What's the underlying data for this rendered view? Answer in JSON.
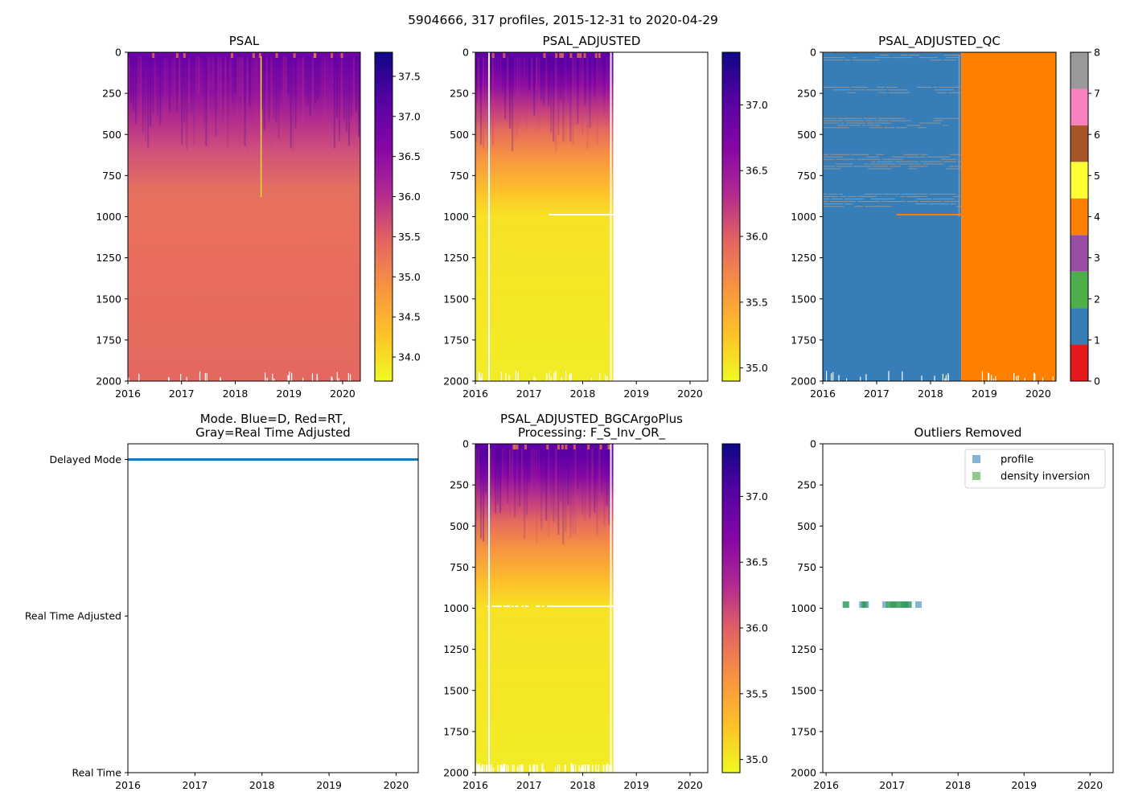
{
  "suptitle": "5904666, 317 profiles, 2015-12-31 to 2020-04-29",
  "colors": {
    "qc_palette": [
      "#e41a1c",
      "#377eb8",
      "#4daf4a",
      "#984ea3",
      "#ff7f00",
      "#ffff33",
      "#a65628",
      "#f781bf",
      "#999999"
    ],
    "mode_line": "#1f77b4",
    "outlier_profile": "#1f77b4",
    "outlier_density": "#2ca02c"
  },
  "chart_data": [
    {
      "id": "psal",
      "type": "heatmap",
      "title": "PSAL",
      "x_ticks": [
        "2016",
        "2017",
        "2018",
        "2019",
        "2020"
      ],
      "y_ticks": [
        "0",
        "250",
        "500",
        "750",
        "1000",
        "1250",
        "1500",
        "1750",
        "2000"
      ],
      "xlim": [
        2016,
        2020.33
      ],
      "ylim": [
        2000,
        0
      ],
      "colormap": "plasma_r",
      "data_extent": [
        2016,
        2020.33
      ],
      "colorbar": {
        "range": [
          33.7,
          37.8
        ],
        "ticks": [
          "34.0",
          "34.5",
          "35.0",
          "35.5",
          "36.0",
          "36.5",
          "37.0",
          "37.5"
        ]
      }
    },
    {
      "id": "psal_adj",
      "type": "heatmap",
      "title": "PSAL_ADJUSTED",
      "x_ticks": [
        "2016",
        "2017",
        "2018",
        "2019",
        "2020"
      ],
      "y_ticks": [
        "0",
        "250",
        "500",
        "750",
        "1000",
        "1250",
        "1500",
        "1750",
        "2000"
      ],
      "xlim": [
        2016,
        2020.33
      ],
      "ylim": [
        2000,
        0
      ],
      "colormap": "plasma_r",
      "data_extent": [
        2016,
        2018.57
      ],
      "colorbar": {
        "range": [
          34.9,
          37.4
        ],
        "ticks": [
          "35.0",
          "35.5",
          "36.0",
          "36.5",
          "37.0"
        ]
      }
    },
    {
      "id": "psal_qc",
      "type": "heatmap",
      "title": "PSAL_ADJUSTED_QC",
      "x_ticks": [
        "2016",
        "2017",
        "2018",
        "2019",
        "2020"
      ],
      "y_ticks": [
        "0",
        "250",
        "500",
        "750",
        "1000",
        "1250",
        "1500",
        "1750",
        "2000"
      ],
      "xlim": [
        2016,
        2020.33
      ],
      "ylim": [
        2000,
        0
      ],
      "colormap": "qc",
      "data_extent": [
        2016,
        2018.57
      ],
      "qc_split_year": 2018.57,
      "colorbar": {
        "range": [
          0,
          8
        ],
        "ticks": [
          "0",
          "1",
          "2",
          "3",
          "4",
          "5",
          "6",
          "7",
          "8"
        ]
      }
    },
    {
      "id": "mode",
      "type": "line",
      "title_lines": [
        "Mode. Blue=D, Red=RT,",
        "Gray=Real Time Adjusted"
      ],
      "x_ticks": [
        "2016",
        "2017",
        "2018",
        "2019",
        "2020"
      ],
      "xlim": [
        2016,
        2020.33
      ],
      "y_ticks": [
        "Real Time",
        "Real Time Adjusted",
        "Delayed Mode"
      ],
      "ylim": [
        0,
        2.1
      ],
      "series": [
        {
          "name": "Delayed Mode",
          "x": [
            2016,
            2020.33
          ],
          "y": [
            2,
            2
          ]
        }
      ]
    },
    {
      "id": "psal_bgc",
      "type": "heatmap",
      "title_lines": [
        "PSAL_ADJUSTED_BGCArgoPlus",
        "Processing: F_S_Inv_OR_"
      ],
      "x_ticks": [
        "2016",
        "2017",
        "2018",
        "2019",
        "2020"
      ],
      "y_ticks": [
        "0",
        "250",
        "500",
        "750",
        "1000",
        "1250",
        "1500",
        "1750",
        "2000"
      ],
      "xlim": [
        2016,
        2020.33
      ],
      "ylim": [
        2000,
        0
      ],
      "colormap": "plasma_r",
      "data_extent": [
        2016,
        2018.57
      ],
      "colorbar": {
        "range": [
          34.9,
          37.4
        ],
        "ticks": [
          "35.0",
          "35.5",
          "36.0",
          "36.5",
          "37.0"
        ]
      }
    },
    {
      "id": "outliers",
      "type": "scatter",
      "title": "Outliers Removed",
      "x_ticks": [
        "2016",
        "2017",
        "2018",
        "2019",
        "2020"
      ],
      "y_ticks": [
        "0",
        "250",
        "500",
        "750",
        "1000",
        "1250",
        "1500",
        "1750",
        "2000"
      ],
      "xlim": [
        2015.95,
        2020.35
      ],
      "ylim": [
        2000,
        0
      ],
      "legend": {
        "position": "top-right",
        "entries": [
          "profile",
          "density inversion"
        ]
      },
      "series": [
        {
          "name": "profile",
          "x": [
            2016.3,
            2016.55,
            2016.6,
            2016.9,
            2017.0,
            2017.05,
            2017.15,
            2017.2,
            2017.25,
            2017.4
          ],
          "y": [
            978,
            978,
            978,
            978,
            978,
            978,
            978,
            978,
            978,
            978
          ]
        },
        {
          "name": "density inversion",
          "x": [
            2016.3,
            2016.58,
            2016.95,
            2017.02,
            2017.1,
            2017.18,
            2017.25
          ],
          "y": [
            978,
            978,
            978,
            978,
            978,
            978,
            978
          ]
        }
      ]
    }
  ]
}
